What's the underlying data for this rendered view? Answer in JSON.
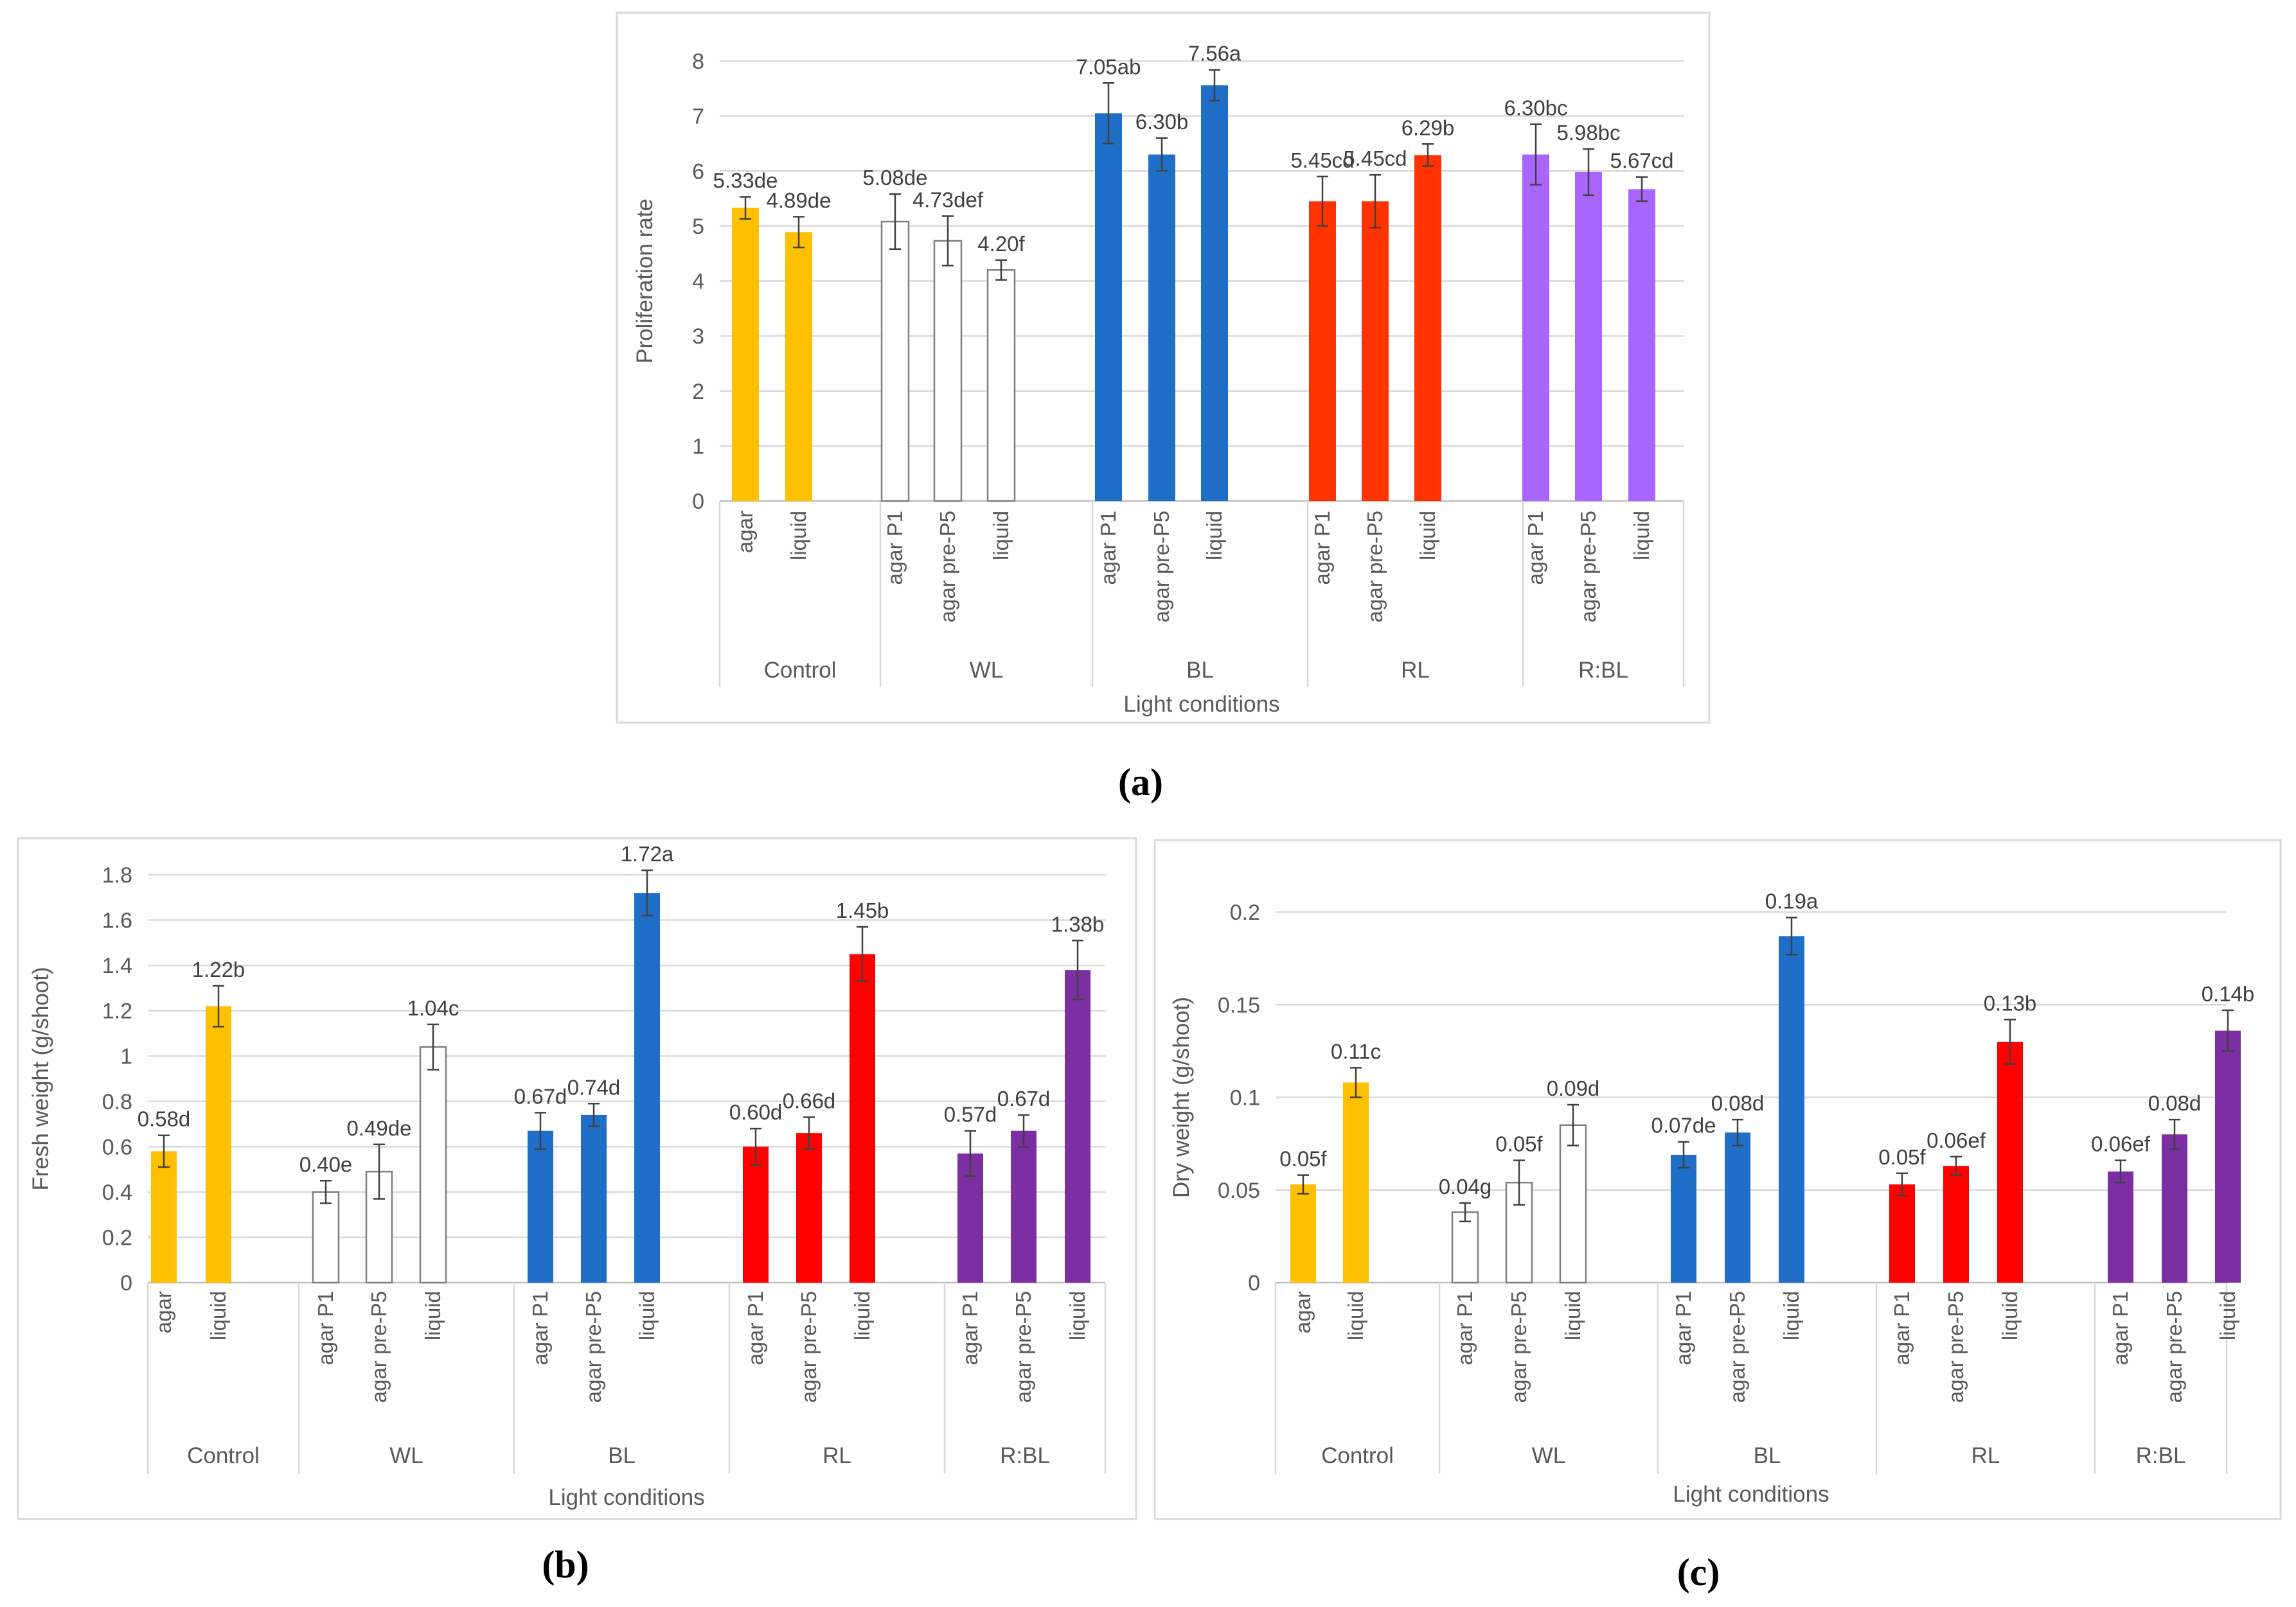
{
  "figure": {
    "panel_labels": [
      "(a)",
      "(b)",
      "(c)"
    ]
  },
  "colors": {
    "Control": "#FFC000",
    "WL": "#FFFFFF",
    "WL_outline": "#7F7F7F",
    "BL_a": "#1F6FC8",
    "RL_a": "#FF3300",
    "RBL_a": "#A866FF",
    "BL_bc": "#1F6FC8",
    "RL_bc": "#FF0000",
    "RBL_bc": "#7B2FA3"
  },
  "chart_data": [
    {
      "type": "bar",
      "panel": "(a)",
      "title": "",
      "xlabel": "Light conditions",
      "ylabel": "Proliferation rate",
      "ylim": [
        0,
        8
      ],
      "ytick_labels": [
        "0",
        "1",
        "2",
        "3",
        "4",
        "5",
        "6",
        "7",
        "8"
      ],
      "grid": true,
      "groups": [
        {
          "name": "Control",
          "categories": [
            "agar",
            "liquid"
          ],
          "values": [
            5.33,
            4.89
          ],
          "errors": [
            0.2,
            0.28
          ],
          "labels": [
            "5.33de",
            "4.89de"
          ]
        },
        {
          "name": "WL",
          "categories": [
            "agar P1",
            "agar pre-P5",
            "liquid"
          ],
          "values": [
            5.08,
            4.73,
            4.2
          ],
          "errors": [
            0.5,
            0.45,
            0.18
          ],
          "labels": [
            "5.08de",
            "4.73def",
            "4.20f"
          ]
        },
        {
          "name": "BL",
          "categories": [
            "agar P1",
            "agar pre-P5",
            "liquid"
          ],
          "values": [
            7.05,
            6.3,
            7.56
          ],
          "errors": [
            0.55,
            0.3,
            0.28
          ],
          "labels": [
            "7.05ab",
            "6.30b",
            "7.56a"
          ]
        },
        {
          "name": "RL",
          "categories": [
            "agar P1",
            "agar pre-P5",
            "liquid"
          ],
          "values": [
            5.45,
            5.45,
            6.29
          ],
          "errors": [
            0.45,
            0.48,
            0.2
          ],
          "labels": [
            "5.45cd",
            "5.45cd",
            "6.29b"
          ]
        },
        {
          "name": "R:BL",
          "categories": [
            "agar P1",
            "agar pre-P5",
            "liquid"
          ],
          "values": [
            6.3,
            5.98,
            5.67
          ],
          "errors": [
            0.55,
            0.42,
            0.22
          ],
          "labels": [
            "6.30bc",
            "5.98bc",
            "5.67cd"
          ]
        }
      ]
    },
    {
      "type": "bar",
      "panel": "(b)",
      "title": "",
      "xlabel": "Light conditions",
      "ylabel": "Fresh weight (g/shoot)",
      "ylim": [
        0,
        1.8
      ],
      "ytick_labels": [
        "0",
        "0.2",
        "0.4",
        "0.6",
        "0.8",
        "1",
        "1.2",
        "1.4",
        "1.6",
        "1.8"
      ],
      "grid": true,
      "groups": [
        {
          "name": "Control",
          "categories": [
            "agar",
            "liquid"
          ],
          "values": [
            0.58,
            1.22
          ],
          "errors": [
            0.07,
            0.09
          ],
          "labels": [
            "0.58d",
            "1.22b"
          ]
        },
        {
          "name": "WL",
          "categories": [
            "agar P1",
            "agar pre-P5",
            "liquid"
          ],
          "values": [
            0.4,
            0.49,
            1.04
          ],
          "errors": [
            0.05,
            0.12,
            0.1
          ],
          "labels": [
            "0.40e",
            "0.49de",
            "1.04c"
          ]
        },
        {
          "name": "BL",
          "categories": [
            "agar P1",
            "agar pre-P5",
            "liquid"
          ],
          "values": [
            0.67,
            0.74,
            1.72
          ],
          "errors": [
            0.08,
            0.05,
            0.1
          ],
          "labels": [
            "0.67d",
            "0.74d",
            "1.72a"
          ]
        },
        {
          "name": "RL",
          "categories": [
            "agar P1",
            "agar pre-P5",
            "liquid"
          ],
          "values": [
            0.6,
            0.66,
            1.45
          ],
          "errors": [
            0.08,
            0.07,
            0.12
          ],
          "labels": [
            "0.60d",
            "0.66d",
            "1.45b"
          ]
        },
        {
          "name": "R:BL",
          "categories": [
            "agar P1",
            "agar pre-P5",
            "liquid"
          ],
          "values": [
            0.57,
            0.67,
            1.38
          ],
          "errors": [
            0.1,
            0.07,
            0.13
          ],
          "labels": [
            "0.57d",
            "0.67d",
            "1.38b"
          ]
        }
      ]
    },
    {
      "type": "bar",
      "panel": "(c)",
      "title": "",
      "xlabel": "Light conditions",
      "ylabel": "Dry weight (g/shoot)",
      "ylim": [
        0,
        0.2
      ],
      "ytick_labels": [
        "0",
        "0.05",
        "0.1",
        "0.15",
        "0.2"
      ],
      "grid": true,
      "groups": [
        {
          "name": "Control",
          "categories": [
            "agar",
            "liquid"
          ],
          "values": [
            0.053,
            0.108
          ],
          "errors": [
            0.005,
            0.008
          ],
          "labels": [
            "0.05f",
            "0.11c"
          ]
        },
        {
          "name": "WL",
          "categories": [
            "agar P1",
            "agar pre-P5",
            "liquid"
          ],
          "values": [
            0.038,
            0.054,
            0.085
          ],
          "errors": [
            0.005,
            0.012,
            0.011
          ],
          "labels": [
            "0.04g",
            "0.05f",
            "0.09d"
          ]
        },
        {
          "name": "BL",
          "categories": [
            "agar P1",
            "agar pre-P5",
            "liquid"
          ],
          "values": [
            0.069,
            0.081,
            0.187
          ],
          "errors": [
            0.007,
            0.007,
            0.01
          ],
          "labels": [
            "0.07de",
            "0.08d",
            "0.19a"
          ]
        },
        {
          "name": "RL",
          "categories": [
            "agar P1",
            "agar pre-P5",
            "liquid"
          ],
          "values": [
            0.053,
            0.063,
            0.13
          ],
          "errors": [
            0.006,
            0.005,
            0.012
          ],
          "labels": [
            "0.05f",
            "0.06ef",
            "0.13b"
          ]
        },
        {
          "name": "R:BL",
          "categories": [
            "agar P1",
            "agar pre-P5",
            "liquid"
          ],
          "values": [
            0.06,
            0.08,
            0.136
          ],
          "errors": [
            0.006,
            0.008,
            0.011
          ],
          "labels": [
            "0.06ef",
            "0.08d",
            "0.14b"
          ]
        }
      ]
    }
  ]
}
